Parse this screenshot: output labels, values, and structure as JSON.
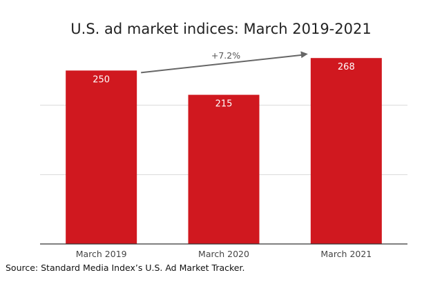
{
  "title": "U.S. ad market indices: March 2019-2021",
  "source": "Source: Standard Media Index’s U.S. Ad Market Tracker.",
  "colors": {
    "bar": "#d0181f",
    "grid": "#d9d9d9",
    "axis": "#333333",
    "arrow": "#666666",
    "label_text": "#ffffff",
    "tick_text": "#444444"
  },
  "chart_data": {
    "type": "bar",
    "title": "U.S. ad market indices: March 2019-2021",
    "categories": [
      "March 2019",
      "March 2020",
      "March 2021"
    ],
    "values": [
      250,
      215,
      268
    ],
    "data_labels": [
      "250",
      "215",
      "268"
    ],
    "ylim": [
      0,
      300
    ],
    "grid": true,
    "annotation": {
      "text": "+7.2%",
      "from": "March 2019",
      "to": "March 2021",
      "type": "arrow"
    }
  }
}
